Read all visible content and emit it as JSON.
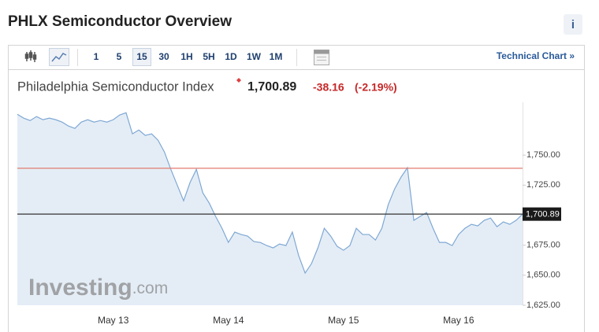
{
  "header": {
    "title": "PHLX Semiconductor Overview",
    "info": "i"
  },
  "toolbar": {
    "intervals": [
      "1",
      "5",
      "15",
      "30",
      "1H",
      "5H",
      "1D",
      "1W",
      "1M"
    ],
    "active_interval": 2,
    "link": "Technical Chart »"
  },
  "watermark": {
    "brand": "Investing",
    "suffix": ".com"
  },
  "chart_data": {
    "type": "area",
    "title": "Philadelphia Semiconductor Index",
    "last_price": {
      "value": 1700.89,
      "label": "1,700.89"
    },
    "change": "-38.16",
    "change_pct": "(-2.19%)",
    "prev_close": 1739.05,
    "prev_close_color": "#e07b6f",
    "last_line_color": "#333333",
    "categories": [
      null,
      null,
      null,
      null,
      null,
      null,
      null,
      null,
      null,
      null,
      null,
      null,
      null,
      null,
      null,
      "May 13",
      null,
      null,
      null,
      null,
      null,
      null,
      null,
      null,
      null,
      null,
      null,
      null,
      null,
      null,
      null,
      null,
      null,
      "May 14",
      null,
      null,
      null,
      null,
      null,
      null,
      null,
      null,
      null,
      null,
      null,
      null,
      null,
      null,
      null,
      null,
      null,
      "May 15",
      null,
      null,
      null,
      null,
      null,
      null,
      null,
      null,
      null,
      null,
      null,
      null,
      null,
      null,
      null,
      null,
      null,
      "May 16",
      null,
      null,
      null,
      null,
      null,
      null,
      null,
      null,
      null,
      null
    ],
    "series": [
      {
        "name": "Philadelphia Semiconductor Index",
        "color": "#7fa8d4",
        "fill": "#e4edf6",
        "values": [
          1784,
          1780.8,
          1778.8,
          1782.1,
          1779.5,
          1780.8,
          1779.5,
          1777.5,
          1774.2,
          1772.3,
          1777.5,
          1779.5,
          1777.5,
          1778.8,
          1777.5,
          1779.5,
          1783.4,
          1785.3,
          1767.7,
          1770.9,
          1766.4,
          1767.7,
          1762.4,
          1752.6,
          1738.2,
          1725.1,
          1712,
          1727.1,
          1738.2,
          1718.6,
          1710.1,
          1699,
          1689.1,
          1677.3,
          1685.9,
          1683.9,
          1682.6,
          1678,
          1677.3,
          1674.7,
          1672.8,
          1676,
          1674.7,
          1685.9,
          1666.2,
          1651.8,
          1659.7,
          1672.8,
          1689.1,
          1682.6,
          1674.1,
          1670.8,
          1674.7,
          1689.1,
          1683.9,
          1683.9,
          1679.3,
          1689.1,
          1708.8,
          1721.9,
          1731.7,
          1739.5,
          1695.7,
          1699,
          1702.2,
          1689.1,
          1677.3,
          1677.3,
          1674.7,
          1683.9,
          1689.1,
          1692.4,
          1691.1,
          1695.7,
          1697.6,
          1690.4,
          1694.4,
          1692.4,
          1695.7,
          1700.89
        ]
      }
    ],
    "ylim": [
      1625,
      1794
    ],
    "yticks": [
      {
        "value": 1625,
        "label": "1,625.00"
      },
      {
        "value": 1650,
        "label": "1,650.00"
      },
      {
        "value": 1675,
        "label": "1,675.00"
      },
      {
        "value": 1725,
        "label": "1,725.00"
      },
      {
        "value": 1750,
        "label": "1,750.00"
      }
    ]
  }
}
